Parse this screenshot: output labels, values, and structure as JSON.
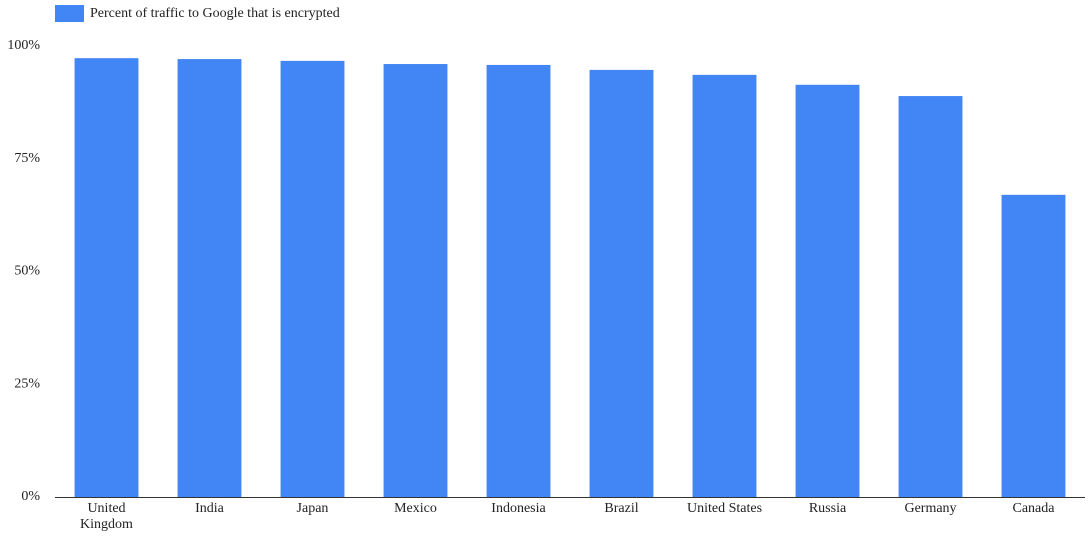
{
  "chart_data": {
    "type": "bar",
    "legend": "Percent of traffic to Google that is encrypted",
    "categories": [
      "United Kingdom",
      "India",
      "Japan",
      "Mexico",
      "Indonesia",
      "Brazil",
      "United States",
      "Russia",
      "Germany",
      "Canada"
    ],
    "values": [
      97.3,
      97.1,
      96.7,
      96.0,
      95.8,
      94.7,
      93.6,
      91.4,
      88.9,
      67.0
    ],
    "color": "#4285f4",
    "ylim": [
      0,
      100
    ],
    "yticks": [
      {
        "value": 0,
        "label": "0%"
      },
      {
        "value": 25,
        "label": "25%"
      },
      {
        "value": 50,
        "label": "50%"
      },
      {
        "value": 75,
        "label": "75%"
      },
      {
        "value": 100,
        "label": "100%"
      }
    ],
    "grid": false
  }
}
